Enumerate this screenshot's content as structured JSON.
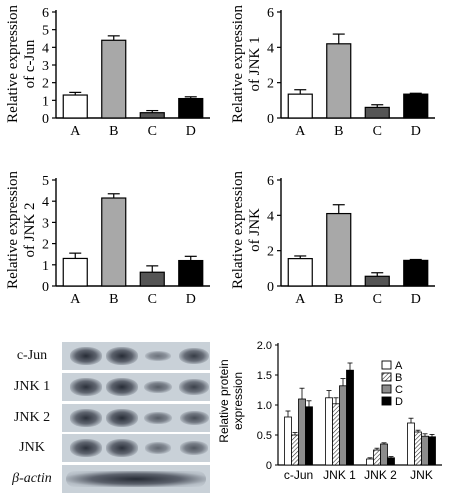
{
  "chart_data": [
    {
      "type": "bar",
      "id": "cjun-mrna",
      "categories": [
        "A",
        "B",
        "C",
        "D"
      ],
      "values": [
        1.3,
        4.4,
        0.3,
        1.1
      ],
      "errors": [
        0.15,
        0.25,
        0.12,
        0.1
      ],
      "fills": [
        "#ffffff",
        "#a8a8a8",
        "#555555",
        "#000000"
      ],
      "ylabel_lines": [
        "Relative expression",
        "of c-Jun"
      ],
      "ylim": [
        0,
        6
      ],
      "yticks": [
        "0",
        "1",
        "2",
        "3",
        "4",
        "5",
        "6"
      ]
    },
    {
      "type": "bar",
      "id": "jnk1-mrna",
      "categories": [
        "A",
        "B",
        "C",
        "D"
      ],
      "values": [
        1.35,
        4.2,
        0.6,
        1.35
      ],
      "errors": [
        0.25,
        0.55,
        0.15,
        0.05
      ],
      "fills": [
        "#ffffff",
        "#a8a8a8",
        "#555555",
        "#000000"
      ],
      "ylabel_lines": [
        "Relative expression",
        "of JNK 1"
      ],
      "ylim": [
        0,
        6
      ],
      "yticks": [
        "0",
        "2",
        "4",
        "6"
      ]
    },
    {
      "type": "bar",
      "id": "jnk2-mrna",
      "categories": [
        "A",
        "B",
        "C",
        "D"
      ],
      "values": [
        1.3,
        4.15,
        0.65,
        1.2
      ],
      "errors": [
        0.25,
        0.2,
        0.3,
        0.2
      ],
      "fills": [
        "#ffffff",
        "#a8a8a8",
        "#555555",
        "#000000"
      ],
      "ylabel_lines": [
        "Relative expression",
        "of JNK 2"
      ],
      "ylim": [
        0,
        5
      ],
      "yticks": [
        "0",
        "1",
        "2",
        "3",
        "4",
        "5"
      ]
    },
    {
      "type": "bar",
      "id": "jnk-mrna",
      "categories": [
        "A",
        "B",
        "C",
        "D"
      ],
      "values": [
        1.55,
        4.1,
        0.55,
        1.45
      ],
      "errors": [
        0.15,
        0.5,
        0.2,
        0.05
      ],
      "fills": [
        "#ffffff",
        "#a8a8a8",
        "#555555",
        "#000000"
      ],
      "ylabel_lines": [
        "Relative expression",
        "of JNK"
      ],
      "ylim": [
        0,
        6
      ],
      "yticks": [
        "0",
        "2",
        "4",
        "6"
      ]
    },
    {
      "type": "bar",
      "id": "protein",
      "categories": [
        "c-Jun",
        "JNK 1",
        "JNK 2",
        "JNK"
      ],
      "series": [
        {
          "name": "A",
          "fill": "#ffffff",
          "pattern": "none",
          "values": [
            0.8,
            1.12,
            0.1,
            0.7
          ],
          "errors": [
            0.1,
            0.12,
            0.02,
            0.08
          ]
        },
        {
          "name": "B",
          "fill": "#ffffff",
          "pattern": "hatch",
          "values": [
            0.5,
            1.02,
            0.25,
            0.55
          ],
          "errors": [
            0.04,
            0.1,
            0.03,
            0.03
          ]
        },
        {
          "name": "C",
          "fill": "#8c8c8c",
          "pattern": "none",
          "values": [
            1.1,
            1.32,
            0.35,
            0.48
          ],
          "errors": [
            0.18,
            0.12,
            0.02,
            0.04
          ]
        },
        {
          "name": "D",
          "fill": "#000000",
          "pattern": "none",
          "values": [
            0.97,
            1.58,
            0.12,
            0.47
          ],
          "errors": [
            0.1,
            0.12,
            0.02,
            0.04
          ]
        }
      ],
      "ylabel_lines": [
        "Relative protein",
        "expression"
      ],
      "ylim": [
        0,
        2.0
      ],
      "yticks": [
        "0",
        "0.5",
        "1.0",
        "1.5",
        "2.0"
      ],
      "legend": "top-right"
    }
  ],
  "blot": {
    "rows": [
      {
        "label": "c-Jun",
        "bands": [
          1.0,
          1.0,
          0.35,
          0.85
        ]
      },
      {
        "label": "JNK 1",
        "bands": [
          0.95,
          1.0,
          0.55,
          0.8
        ]
      },
      {
        "label": "JNK 2",
        "bands": [
          0.95,
          1.0,
          0.55,
          0.7
        ]
      },
      {
        "label": "JNK",
        "bands": [
          0.95,
          0.95,
          0.45,
          0.6
        ]
      },
      {
        "label": "β-actin",
        "bands": [
          0.0,
          0.0,
          0.0,
          0.0
        ]
      }
    ]
  }
}
